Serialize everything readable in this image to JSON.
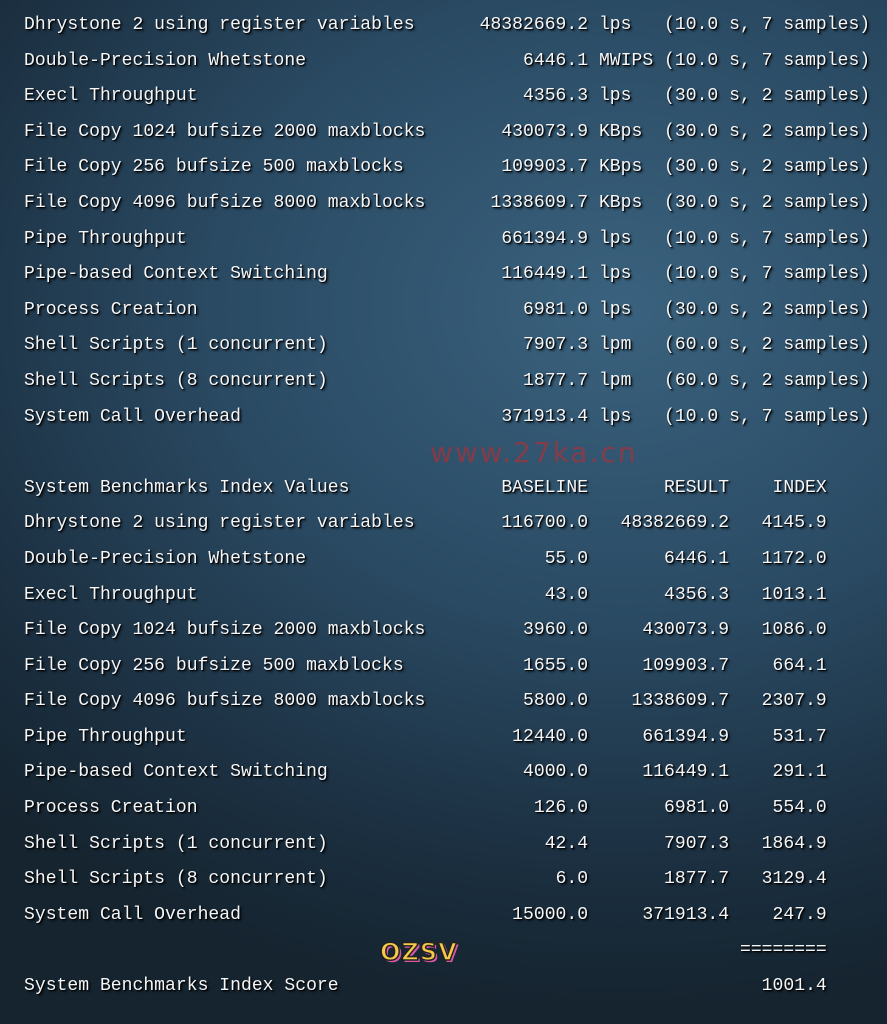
{
  "results": [
    {
      "name": "Dhrystone 2 using register variables",
      "value": "48382669.2",
      "unit": "lps",
      "samples": "(10.0 s, 7 samples)"
    },
    {
      "name": "Double-Precision Whetstone",
      "value": "6446.1",
      "unit": "MWIPS",
      "samples": "(10.0 s, 7 samples)"
    },
    {
      "name": "Execl Throughput",
      "value": "4356.3",
      "unit": "lps",
      "samples": "(30.0 s, 2 samples)"
    },
    {
      "name": "File Copy 1024 bufsize 2000 maxblocks",
      "value": "430073.9",
      "unit": "KBps",
      "samples": "(30.0 s, 2 samples)"
    },
    {
      "name": "File Copy 256 bufsize 500 maxblocks",
      "value": "109903.7",
      "unit": "KBps",
      "samples": "(30.0 s, 2 samples)"
    },
    {
      "name": "File Copy 4096 bufsize 8000 maxblocks",
      "value": "1338609.7",
      "unit": "KBps",
      "samples": "(30.0 s, 2 samples)"
    },
    {
      "name": "Pipe Throughput",
      "value": "661394.9",
      "unit": "lps",
      "samples": "(10.0 s, 7 samples)"
    },
    {
      "name": "Pipe-based Context Switching",
      "value": "116449.1",
      "unit": "lps",
      "samples": "(10.0 s, 7 samples)"
    },
    {
      "name": "Process Creation",
      "value": "6981.0",
      "unit": "lps",
      "samples": "(30.0 s, 2 samples)"
    },
    {
      "name": "Shell Scripts (1 concurrent)",
      "value": "7907.3",
      "unit": "lpm",
      "samples": "(60.0 s, 2 samples)"
    },
    {
      "name": "Shell Scripts (8 concurrent)",
      "value": "1877.7",
      "unit": "lpm",
      "samples": "(60.0 s, 2 samples)"
    },
    {
      "name": "System Call Overhead",
      "value": "371913.4",
      "unit": "lps",
      "samples": "(10.0 s, 7 samples)"
    }
  ],
  "index_header": {
    "title": "System Benchmarks Index Values",
    "baseline": "BASELINE",
    "result": "RESULT",
    "index": "INDEX"
  },
  "index_rows": [
    {
      "name": "Dhrystone 2 using register variables",
      "baseline": "116700.0",
      "result": "48382669.2",
      "index": "4145.9"
    },
    {
      "name": "Double-Precision Whetstone",
      "baseline": "55.0",
      "result": "6446.1",
      "index": "1172.0"
    },
    {
      "name": "Execl Throughput",
      "baseline": "43.0",
      "result": "4356.3",
      "index": "1013.1"
    },
    {
      "name": "File Copy 1024 bufsize 2000 maxblocks",
      "baseline": "3960.0",
      "result": "430073.9",
      "index": "1086.0"
    },
    {
      "name": "File Copy 256 bufsize 500 maxblocks",
      "baseline": "1655.0",
      "result": "109903.7",
      "index": "664.1"
    },
    {
      "name": "File Copy 4096 bufsize 8000 maxblocks",
      "baseline": "5800.0",
      "result": "1338609.7",
      "index": "2307.9"
    },
    {
      "name": "Pipe Throughput",
      "baseline": "12440.0",
      "result": "661394.9",
      "index": "531.7"
    },
    {
      "name": "Pipe-based Context Switching",
      "baseline": "4000.0",
      "result": "116449.1",
      "index": "291.1"
    },
    {
      "name": "Process Creation",
      "baseline": "126.0",
      "result": "6981.0",
      "index": "554.0"
    },
    {
      "name": "Shell Scripts (1 concurrent)",
      "baseline": "42.4",
      "result": "7907.3",
      "index": "1864.9"
    },
    {
      "name": "Shell Scripts (8 concurrent)",
      "baseline": "6.0",
      "result": "1877.7",
      "index": "3129.4"
    },
    {
      "name": "System Call Overhead",
      "baseline": "15000.0",
      "result": "371913.4",
      "index": "247.9"
    }
  ],
  "separator": "========",
  "score": {
    "label": "System Benchmarks Index Score",
    "value": "1001.4"
  },
  "watermark": "www.27ka.cn",
  "logo": "OZSV"
}
